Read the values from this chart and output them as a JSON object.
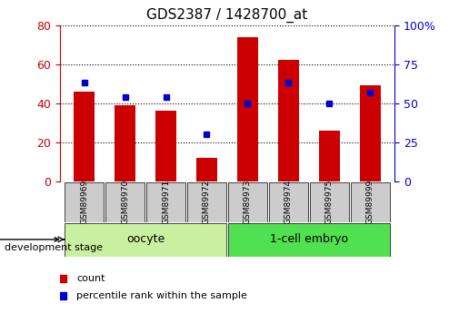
{
  "title": "GDS2387 / 1428700_at",
  "samples": [
    "GSM89969",
    "GSM89970",
    "GSM89971",
    "GSM89972",
    "GSM89973",
    "GSM89974",
    "GSM89975",
    "GSM89999"
  ],
  "counts": [
    46,
    39,
    36,
    12,
    74,
    62,
    26,
    49
  ],
  "percentiles": [
    63,
    54,
    54,
    30,
    50,
    63,
    50,
    57
  ],
  "groups": [
    {
      "label": "oocyte",
      "indices": [
        0,
        1,
        2,
        3
      ],
      "color": "#c8f0a0"
    },
    {
      "label": "1-cell embryo",
      "indices": [
        4,
        5,
        6,
        7
      ],
      "color": "#50e050"
    }
  ],
  "group_label": "development stage",
  "bar_color": "#cc0000",
  "dot_color": "#0000cc",
  "left_ylabel": "count",
  "left_ylim": [
    0,
    80
  ],
  "left_yticks": [
    0,
    20,
    40,
    60,
    80
  ],
  "right_ylabel": "percentile",
  "right_ylim": [
    0,
    100
  ],
  "right_yticks": [
    0,
    25,
    50,
    75,
    100
  ],
  "right_yticklabels": [
    "0",
    "25",
    "50",
    "75",
    "100%"
  ],
  "grid_color": "#000000",
  "bg_color": "#ffffff",
  "plot_bg": "#ffffff",
  "tick_color_left": "#cc0000",
  "tick_color_right": "#0000cc",
  "legend_count_label": "count",
  "legend_percentile_label": "percentile rank within the sample",
  "bar_width": 0.5,
  "sample_bg_color": "#cccccc"
}
